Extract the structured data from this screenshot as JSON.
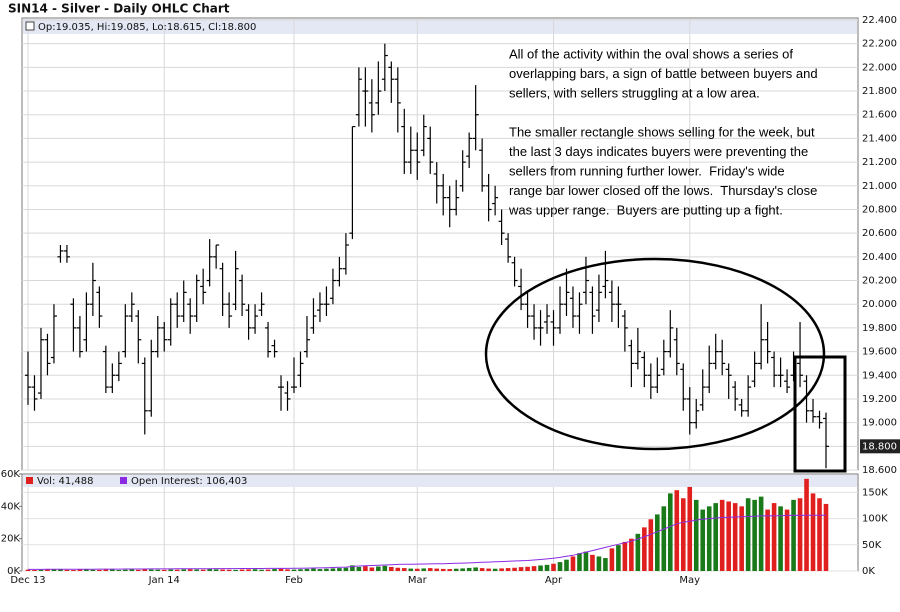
{
  "chart_data": {
    "type": "ohlc",
    "title": "SIN14 - Silver - Daily OHLC Chart",
    "header_text": "Op:19.035, Hi:19.085, Lo:18.615, Cl:18.800",
    "categories": [
      "Dec 13",
      null,
      null,
      null,
      null,
      null,
      null,
      null,
      null,
      null,
      null,
      null,
      null,
      null,
      null,
      null,
      null,
      null,
      null,
      null,
      null,
      "Jan 14",
      null,
      null,
      null,
      null,
      null,
      null,
      null,
      null,
      null,
      null,
      null,
      null,
      null,
      null,
      null,
      null,
      null,
      null,
      null,
      "Feb",
      null,
      null,
      null,
      null,
      null,
      null,
      null,
      null,
      null,
      null,
      null,
      null,
      null,
      null,
      null,
      null,
      null,
      null,
      "Mar",
      null,
      null,
      null,
      null,
      null,
      null,
      null,
      null,
      null,
      null,
      null,
      null,
      null,
      null,
      null,
      null,
      null,
      null,
      null,
      null,
      "Apr",
      null,
      null,
      null,
      null,
      null,
      null,
      null,
      null,
      null,
      null,
      null,
      null,
      null,
      null,
      null,
      null,
      null,
      null,
      null,
      null,
      "May",
      null,
      null,
      null,
      null,
      null,
      null,
      null,
      null,
      null,
      null,
      null,
      null,
      null,
      null,
      null,
      null,
      null,
      null,
      null,
      null,
      null
    ],
    "ohlc": [
      [
        19.4,
        19.6,
        19.15,
        19.3
      ],
      [
        19.3,
        19.4,
        19.1,
        19.2
      ],
      [
        19.25,
        19.8,
        19.2,
        19.7
      ],
      [
        19.7,
        19.75,
        19.4,
        19.5
      ],
      [
        19.55,
        20.0,
        19.5,
        19.9
      ],
      [
        20.4,
        20.5,
        20.35,
        20.45
      ],
      [
        20.45,
        20.5,
        20.35,
        20.4
      ],
      [
        20.0,
        20.05,
        19.6,
        19.8
      ],
      [
        19.8,
        19.9,
        19.55,
        19.6
      ],
      [
        19.7,
        20.1,
        19.6,
        20.0
      ],
      [
        20.0,
        20.35,
        19.9,
        20.2
      ],
      [
        20.1,
        20.15,
        19.8,
        19.9
      ],
      [
        19.6,
        19.65,
        19.25,
        19.3
      ],
      [
        19.3,
        19.5,
        19.25,
        19.4
      ],
      [
        19.4,
        19.6,
        19.35,
        19.5
      ],
      [
        19.6,
        20.0,
        19.55,
        19.9
      ],
      [
        19.9,
        20.1,
        19.85,
        20.0
      ],
      [
        19.9,
        19.95,
        19.5,
        19.7
      ],
      [
        19.5,
        19.55,
        18.9,
        19.1
      ],
      [
        19.1,
        19.7,
        19.05,
        19.6
      ],
      [
        19.6,
        19.9,
        19.55,
        19.8
      ],
      [
        19.8,
        19.85,
        19.6,
        19.7
      ],
      [
        19.7,
        20.05,
        19.65,
        20.0
      ],
      [
        20.0,
        20.1,
        19.8,
        19.9
      ],
      [
        19.9,
        20.2,
        19.85,
        20.1
      ],
      [
        20.0,
        20.05,
        19.75,
        19.9
      ],
      [
        19.9,
        20.25,
        19.85,
        20.2
      ],
      [
        20.15,
        20.3,
        20.0,
        20.1
      ],
      [
        20.2,
        20.55,
        20.15,
        20.4
      ],
      [
        20.4,
        20.5,
        20.3,
        20.5
      ],
      [
        20.3,
        20.35,
        19.9,
        20.0
      ],
      [
        20.0,
        20.1,
        19.8,
        19.9
      ],
      [
        20.0,
        20.45,
        19.95,
        20.3
      ],
      [
        20.2,
        20.25,
        19.9,
        20.0
      ],
      [
        19.95,
        20.0,
        19.7,
        19.8
      ],
      [
        19.8,
        20.0,
        19.75,
        19.9
      ],
      [
        19.95,
        20.1,
        19.9,
        20.0
      ],
      [
        19.8,
        19.85,
        19.55,
        19.6
      ],
      [
        19.65,
        19.7,
        19.55,
        19.6
      ],
      [
        19.3,
        19.4,
        19.1,
        19.3
      ],
      [
        19.25,
        19.35,
        19.1,
        19.2
      ],
      [
        19.3,
        19.55,
        19.25,
        19.3
      ],
      [
        19.4,
        19.6,
        19.3,
        19.5
      ],
      [
        19.6,
        19.9,
        19.55,
        19.7
      ],
      [
        19.8,
        20.05,
        19.75,
        19.9
      ],
      [
        19.95,
        20.1,
        19.85,
        20.0
      ],
      [
        20.0,
        20.15,
        19.9,
        20.0
      ],
      [
        20.05,
        20.3,
        20.0,
        20.2
      ],
      [
        20.2,
        20.4,
        20.15,
        20.3
      ],
      [
        20.3,
        20.6,
        20.25,
        20.5
      ],
      [
        20.6,
        21.5,
        20.55,
        21.5
      ],
      [
        21.6,
        22.0,
        21.5,
        21.9
      ],
      [
        21.8,
        22.0,
        21.5,
        21.8
      ],
      [
        21.7,
        21.9,
        21.45,
        21.6
      ],
      [
        21.7,
        22.05,
        21.6,
        21.8
      ],
      [
        21.9,
        22.2,
        21.8,
        22.1
      ],
      [
        22.0,
        22.05,
        21.7,
        21.9
      ],
      [
        21.9,
        22.0,
        21.45,
        21.7
      ],
      [
        21.5,
        21.65,
        21.1,
        21.2
      ],
      [
        21.2,
        21.5,
        21.1,
        21.3
      ],
      [
        21.3,
        21.45,
        21.05,
        21.2
      ],
      [
        21.3,
        21.6,
        21.25,
        21.5
      ],
      [
        21.4,
        21.5,
        21.1,
        21.2
      ],
      [
        21.1,
        21.2,
        20.85,
        21.0
      ],
      [
        21.0,
        21.1,
        20.75,
        20.9
      ],
      [
        20.9,
        21.0,
        20.65,
        20.8
      ],
      [
        20.8,
        21.05,
        20.75,
        20.9
      ],
      [
        21.0,
        21.3,
        20.95,
        21.2
      ],
      [
        21.25,
        21.45,
        21.15,
        21.4
      ],
      [
        21.4,
        21.85,
        21.3,
        21.6
      ],
      [
        21.3,
        21.4,
        20.95,
        21.0
      ],
      [
        21.0,
        21.1,
        20.7,
        20.8
      ],
      [
        20.85,
        21.0,
        20.75,
        20.9
      ],
      [
        20.7,
        20.8,
        20.5,
        20.6
      ],
      [
        20.55,
        20.6,
        20.35,
        20.4
      ],
      [
        20.35,
        20.4,
        20.15,
        20.2
      ],
      [
        20.15,
        20.3,
        19.95,
        20.0
      ],
      [
        20.0,
        20.1,
        19.8,
        19.9
      ],
      [
        19.9,
        20.0,
        19.7,
        19.8
      ],
      [
        19.8,
        19.95,
        19.65,
        19.8
      ],
      [
        19.85,
        20.0,
        19.75,
        19.9
      ],
      [
        19.85,
        19.95,
        19.65,
        19.8
      ],
      [
        19.8,
        20.15,
        19.75,
        20.0
      ],
      [
        20.0,
        20.3,
        19.9,
        20.1
      ],
      [
        20.05,
        20.15,
        19.8,
        19.9
      ],
      [
        19.9,
        20.1,
        19.75,
        20.0
      ],
      [
        20.1,
        20.4,
        20.0,
        20.2
      ],
      [
        20.1,
        20.15,
        19.75,
        19.9
      ],
      [
        19.95,
        20.25,
        19.85,
        20.1
      ],
      [
        20.15,
        20.45,
        20.05,
        20.2
      ],
      [
        20.1,
        20.2,
        19.85,
        20.0
      ],
      [
        20.0,
        20.15,
        19.8,
        20.0
      ],
      [
        19.9,
        19.95,
        19.6,
        19.8
      ],
      [
        19.65,
        19.7,
        19.3,
        19.5
      ],
      [
        19.5,
        19.8,
        19.45,
        19.6
      ],
      [
        19.55,
        19.6,
        19.3,
        19.4
      ],
      [
        19.4,
        19.5,
        19.2,
        19.3
      ],
      [
        19.3,
        19.55,
        19.25,
        19.4
      ],
      [
        19.45,
        19.7,
        19.4,
        19.6
      ],
      [
        19.6,
        19.95,
        19.55,
        19.8
      ],
      [
        19.7,
        19.8,
        19.4,
        19.5
      ],
      [
        19.45,
        19.5,
        19.1,
        19.2
      ],
      [
        19.2,
        19.3,
        18.9,
        19.0
      ],
      [
        19.0,
        19.2,
        18.95,
        19.1
      ],
      [
        19.15,
        19.45,
        19.1,
        19.3
      ],
      [
        19.3,
        19.65,
        19.25,
        19.5
      ],
      [
        19.5,
        19.75,
        19.45,
        19.6
      ],
      [
        19.6,
        19.7,
        19.4,
        19.5
      ],
      [
        19.45,
        19.5,
        19.2,
        19.4
      ],
      [
        19.3,
        19.35,
        19.1,
        19.2
      ],
      [
        19.15,
        19.2,
        19.05,
        19.1
      ],
      [
        19.1,
        19.4,
        19.05,
        19.3
      ],
      [
        19.35,
        19.6,
        19.3,
        19.5
      ],
      [
        19.5,
        20.0,
        19.45,
        19.7
      ],
      [
        19.7,
        19.85,
        19.5,
        19.6
      ],
      [
        19.55,
        19.6,
        19.3,
        19.4
      ],
      [
        19.4,
        19.55,
        19.3,
        19.4
      ],
      [
        19.35,
        19.45,
        19.25,
        19.3
      ],
      [
        19.4,
        19.6,
        19.35,
        19.5
      ],
      [
        19.5,
        19.85,
        19.3,
        19.4
      ],
      [
        19.35,
        19.4,
        19.0,
        19.1
      ],
      [
        19.1,
        19.2,
        19.0,
        19.05
      ],
      [
        19.05,
        19.1,
        18.95,
        19.0
      ],
      [
        19.035,
        19.085,
        18.615,
        18.8
      ]
    ],
    "color": "#000000",
    "ylim": [
      18.6,
      22.4
    ],
    "yticks": [
      {
        "value": 18.6,
        "label": "18.600"
      },
      {
        "value": 18.8,
        "label": "18.800"
      },
      {
        "value": 19.0,
        "label": "19.000"
      },
      {
        "value": 19.2,
        "label": "19.200"
      },
      {
        "value": 19.4,
        "label": "19.400"
      },
      {
        "value": 19.6,
        "label": "19.600"
      },
      {
        "value": 19.8,
        "label": "19.800"
      },
      {
        "value": 20.0,
        "label": "20.000"
      },
      {
        "value": 20.2,
        "label": "20.200"
      },
      {
        "value": 20.4,
        "label": "20.400"
      },
      {
        "value": 20.6,
        "label": "20.600"
      },
      {
        "value": 20.8,
        "label": "20.800"
      },
      {
        "value": 21.0,
        "label": "21.000"
      },
      {
        "value": 21.2,
        "label": "21.200"
      },
      {
        "value": 21.4,
        "label": "21.400"
      },
      {
        "value": 21.6,
        "label": "21.600"
      },
      {
        "value": 21.8,
        "label": "21.800"
      },
      {
        "value": 22.0,
        "label": "22.000"
      },
      {
        "value": 22.2,
        "label": "22.200"
      },
      {
        "value": 22.4,
        "label": "22.400"
      }
    ],
    "grid": true,
    "volume": {
      "name": "Vol: 41,488",
      "color": "#e0201f",
      "up_color": "#1a7a1a",
      "values": [
        800,
        600,
        700,
        900,
        1200,
        1000,
        700,
        600,
        900,
        1100,
        800,
        700,
        900,
        1000,
        600,
        800,
        900,
        700,
        1200,
        900,
        800,
        700,
        900,
        800,
        1000,
        1100,
        900,
        800,
        1200,
        1000,
        900,
        800,
        700,
        900,
        1000,
        1100,
        800,
        900,
        1200,
        1400,
        1000,
        900,
        1100,
        1300,
        1500,
        1200,
        1400,
        1600,
        1800,
        2000,
        3500,
        2500,
        3000,
        2200,
        2800,
        3200,
        2500,
        2000,
        1800,
        1500,
        1400,
        1600,
        1800,
        1500,
        1300,
        1200,
        1400,
        1600,
        1900,
        2200,
        1800,
        1500,
        1400,
        1600,
        1800,
        2000,
        2400,
        2600,
        3000,
        3400,
        3800,
        4500,
        5500,
        7000,
        9000,
        11000,
        12000,
        10000,
        9000,
        8000,
        14000,
        16000,
        18000,
        20000,
        23000,
        27000,
        32000,
        35000,
        40000,
        48000,
        50000,
        45000,
        52000,
        44000,
        38000,
        40000,
        42000,
        44000,
        43000,
        42000,
        40000,
        45000,
        44000,
        46000,
        38000,
        42000,
        40000,
        38000,
        44000,
        45000,
        57000,
        48000,
        45000,
        41488
      ],
      "ylim": [
        0,
        60000
      ],
      "yticks": [
        {
          "value": 0,
          "label": "0K"
        },
        {
          "value": 20000,
          "label": "20K"
        },
        {
          "value": 40000,
          "label": "40K"
        },
        {
          "value": 60000,
          "label": "60K"
        }
      ]
    },
    "open_interest": {
      "name": "Open Interest: 106,403",
      "color": "#8a2be2",
      "axis": "y2",
      "values": [
        3000,
        3100,
        3100,
        3200,
        3200,
        3300,
        3300,
        3400,
        3400,
        3500,
        3500,
        3600,
        3600,
        3700,
        3700,
        3800,
        3800,
        3900,
        3900,
        4000,
        4000,
        4100,
        4100,
        4200,
        4200,
        4300,
        4300,
        4400,
        4400,
        4500,
        4500,
        4600,
        4600,
        4700,
        4700,
        4800,
        4800,
        4900,
        4900,
        5000,
        5000,
        5200,
        5400,
        5600,
        5800,
        6000,
        6300,
        6600,
        7000,
        7500,
        8500,
        9500,
        10000,
        10500,
        11000,
        11500,
        12000,
        12500,
        12800,
        13000,
        13200,
        13400,
        13600,
        13800,
        14000,
        14300,
        14600,
        15000,
        15500,
        16000,
        16500,
        17000,
        17500,
        18000,
        18500,
        19000,
        19500,
        20000,
        21000,
        22000,
        23000,
        24500,
        26000,
        28000,
        30000,
        33000,
        36000,
        39000,
        42000,
        45000,
        48000,
        51000,
        54000,
        57000,
        61000,
        65000,
        70000,
        75000,
        80000,
        85000,
        90000,
        93000,
        95000,
        97000,
        99000,
        100000,
        101000,
        102000,
        102500,
        103000,
        103500,
        104000,
        104500,
        105000,
        105500,
        105000,
        105500,
        106000,
        106500,
        106000,
        106500,
        106200,
        106300,
        106403
      ],
      "y2lim": [
        0,
        185000
      ],
      "y2ticks": [
        {
          "value": 0,
          "label": "0K"
        },
        {
          "value": 50000,
          "label": "50K"
        },
        {
          "value": 100000,
          "label": "100K"
        },
        {
          "value": 150000,
          "label": "150K"
        }
      ]
    },
    "annotation": [
      [
        "All of the activity within the oval shows a series of",
        "overlapping bars, a sign of battle between buyers and",
        "sellers, with sellers struggling at a low area."
      ],
      [
        "The smaller rectangle shows selling for the week, but",
        "the last 3 days indicates buyers were preventing the",
        "sellers from running further lower.  Friday's wide",
        "range bar lower closed off the lows.  Thursday's close",
        "was upper range.  Buyers are putting up a fight."
      ]
    ]
  }
}
